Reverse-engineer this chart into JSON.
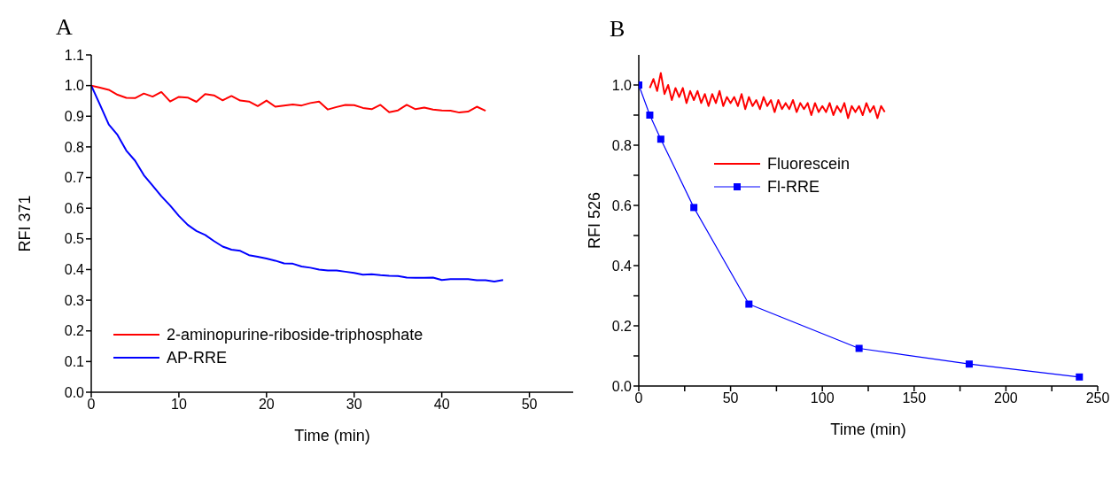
{
  "chart_data": [
    {
      "type": "line",
      "title": "A",
      "xlabel": "Time (min)",
      "ylabel": "RFI 371",
      "xlim": [
        0,
        55
      ],
      "xticks": [
        0,
        10,
        20,
        30,
        40,
        50
      ],
      "ylim": [
        0,
        1.1
      ],
      "yticks": [
        {
          "value": 0,
          "label": "0.0"
        },
        {
          "value": 0.1,
          "label": "0.1"
        },
        {
          "value": 0.2,
          "label": "0.2"
        },
        {
          "value": 0.3,
          "label": "0.3"
        },
        {
          "value": 0.4,
          "label": "0.4"
        },
        {
          "value": 0.5,
          "label": "0.5"
        },
        {
          "value": 0.6,
          "label": "0.6"
        },
        {
          "value": 0.7,
          "label": "0.7"
        },
        {
          "value": 0.8,
          "label": "0.8"
        },
        {
          "value": 0.9,
          "label": "0.9"
        },
        {
          "value": 1,
          "label": "1.0"
        },
        {
          "value": 1.1,
          "label": "1.1"
        }
      ],
      "legend": "bottom left",
      "series": [
        {
          "name": "2-aminopurine-riboside-triphosphate",
          "color": "#ff0000",
          "marker": "none",
          "x": [
            0,
            1,
            2,
            3,
            4,
            5,
            6,
            7,
            8,
            9,
            10,
            11,
            12,
            13,
            14,
            15,
            16,
            17,
            18,
            19,
            20,
            21,
            22,
            23,
            24,
            25,
            26,
            27,
            28,
            29,
            30,
            31,
            32,
            33,
            34,
            35,
            36,
            37,
            38,
            39,
            40,
            41,
            42,
            43,
            44,
            45
          ],
          "values": [
            1.0,
            0.993,
            0.986,
            0.97,
            0.96,
            0.959,
            0.974,
            0.964,
            0.979,
            0.948,
            0.963,
            0.961,
            0.947,
            0.972,
            0.968,
            0.952,
            0.966,
            0.951,
            0.948,
            0.933,
            0.951,
            0.931,
            0.935,
            0.938,
            0.935,
            0.943,
            0.948,
            0.922,
            0.93,
            0.937,
            0.936,
            0.927,
            0.923,
            0.937,
            0.913,
            0.919,
            0.937,
            0.923,
            0.928,
            0.922,
            0.919,
            0.918,
            0.912,
            0.915,
            0.931,
            0.918
          ]
        },
        {
          "name": "AP-RRE",
          "color": "#0000ff",
          "marker": "none",
          "x": [
            0,
            1,
            2,
            3,
            4,
            5,
            6,
            7,
            8,
            9,
            10,
            11,
            12,
            13,
            14,
            15,
            16,
            17,
            18,
            19,
            20,
            21,
            22,
            23,
            24,
            25,
            26,
            27,
            28,
            29,
            30,
            31,
            32,
            33,
            34,
            35,
            36,
            37,
            38,
            39,
            40,
            41,
            42,
            43,
            44,
            45,
            46,
            47
          ],
          "values": [
            1.0,
            0.937,
            0.873,
            0.839,
            0.788,
            0.755,
            0.708,
            0.674,
            0.639,
            0.609,
            0.575,
            0.546,
            0.526,
            0.513,
            0.493,
            0.475,
            0.465,
            0.461,
            0.447,
            0.442,
            0.436,
            0.429,
            0.42,
            0.419,
            0.41,
            0.406,
            0.4,
            0.397,
            0.397,
            0.393,
            0.389,
            0.383,
            0.385,
            0.382,
            0.38,
            0.379,
            0.374,
            0.373,
            0.373,
            0.374,
            0.366,
            0.369,
            0.369,
            0.369,
            0.365,
            0.365,
            0.361,
            0.366
          ]
        }
      ]
    },
    {
      "type": "line",
      "title": "B",
      "xlabel": "Time (min)",
      "ylabel": "RFI 526",
      "xlim": [
        0,
        250
      ],
      "xticks": [
        0,
        {
          "value": 25,
          "label": null
        },
        50,
        {
          "value": 75,
          "label": null
        },
        100,
        {
          "value": 125,
          "label": null
        },
        150,
        {
          "value": 175,
          "label": null
        },
        200,
        {
          "value": 225,
          "label": null
        },
        250
      ],
      "ylim": [
        0,
        1.1
      ],
      "yticks": [
        {
          "value": 0,
          "label": "0.0"
        },
        {
          "value": 0.1,
          "label": null
        },
        {
          "value": 0.2,
          "label": "0.2"
        },
        {
          "value": 0.3,
          "label": null
        },
        {
          "value": 0.4,
          "label": "0.4"
        },
        {
          "value": 0.5,
          "label": null
        },
        {
          "value": 0.6,
          "label": "0.6"
        },
        {
          "value": 0.7,
          "label": null
        },
        {
          "value": 0.8,
          "label": "0.8"
        },
        {
          "value": 0.9,
          "label": null
        },
        {
          "value": 1,
          "label": "1.0"
        }
      ],
      "legend": "top left",
      "series": [
        {
          "name": "Fluorescein",
          "color": "#ff0000",
          "marker": "none",
          "x": [
            6,
            8,
            10,
            12,
            14,
            16,
            18,
            20,
            22,
            24,
            26,
            28,
            30,
            32,
            34,
            36,
            38,
            40,
            42,
            44,
            46,
            48,
            50,
            52,
            54,
            56,
            58,
            60,
            62,
            64,
            66,
            68,
            70,
            72,
            74,
            76,
            78,
            80,
            82,
            84,
            86,
            88,
            90,
            92,
            94,
            96,
            98,
            100,
            102,
            104,
            106,
            108,
            110,
            112,
            114,
            116,
            118,
            120,
            122,
            124,
            126,
            128,
            130,
            132,
            134
          ],
          "values": [
            0.99,
            1.02,
            0.98,
            1.04,
            0.97,
            1.0,
            0.95,
            0.99,
            0.96,
            0.99,
            0.94,
            0.98,
            0.95,
            0.98,
            0.94,
            0.97,
            0.93,
            0.97,
            0.94,
            0.98,
            0.93,
            0.96,
            0.94,
            0.96,
            0.93,
            0.97,
            0.92,
            0.96,
            0.93,
            0.95,
            0.92,
            0.96,
            0.93,
            0.95,
            0.91,
            0.95,
            0.92,
            0.94,
            0.92,
            0.95,
            0.91,
            0.94,
            0.92,
            0.94,
            0.9,
            0.94,
            0.91,
            0.93,
            0.91,
            0.94,
            0.9,
            0.93,
            0.91,
            0.94,
            0.89,
            0.93,
            0.91,
            0.93,
            0.9,
            0.94,
            0.91,
            0.93,
            0.89,
            0.93,
            0.91
          ]
        },
        {
          "name": "Fl-RRE",
          "color": "#0000ff",
          "marker": "square",
          "x": [
            0,
            6,
            12,
            30,
            60,
            120,
            180,
            240
          ],
          "values": [
            1.0,
            0.9,
            0.82,
            0.593,
            0.272,
            0.125,
            0.073,
            0.03
          ]
        }
      ]
    }
  ]
}
